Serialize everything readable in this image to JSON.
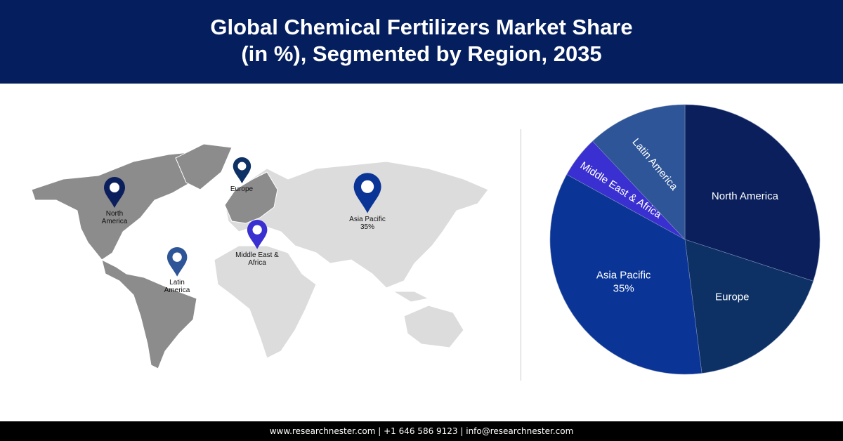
{
  "header": {
    "title_line1": "Global Chemical Fertilizers Market Share",
    "title_line2": "(in %), Segmented by Region, 2035"
  },
  "map": {
    "pins": [
      {
        "label_line1": "North",
        "label_line2": "America",
        "color": "#0b1f5c"
      },
      {
        "label_line1": "Europe",
        "label_line2": "",
        "color": "#0d3165"
      },
      {
        "label_line1": "Asia Pacific",
        "label_line2": "35%",
        "color": "#0a3597"
      },
      {
        "label_line1": "Middle East &",
        "label_line2": "Africa",
        "color": "#3a2fd0"
      },
      {
        "label_line1": "Latin",
        "label_line2": "America",
        "color": "#2e5597"
      }
    ]
  },
  "chart_data": {
    "type": "pie",
    "title": "Global Chemical Fertilizers Market Share (in %), Segmented by Region, 2035",
    "unit": "%",
    "start_angle": "12 o'clock, clockwise",
    "slices": [
      {
        "label": "North America",
        "value": 30,
        "value_label": "",
        "color": "#0b1f5c"
      },
      {
        "label": "Europe",
        "value": 18,
        "value_label": "",
        "color": "#0d3165"
      },
      {
        "label": "Asia Pacific",
        "value": 35,
        "value_label": "35%",
        "color": "#0a3597"
      },
      {
        "label": "Middle East & Africa",
        "value": 5,
        "value_label": "",
        "color": "#3a2fd0"
      },
      {
        "label": "Latin America",
        "value": 12,
        "value_label": "",
        "color": "#2e5597"
      }
    ]
  },
  "footer": {
    "text": "www.researchnester.com  | +1 646 586 9123 | info@researchnester.com"
  }
}
